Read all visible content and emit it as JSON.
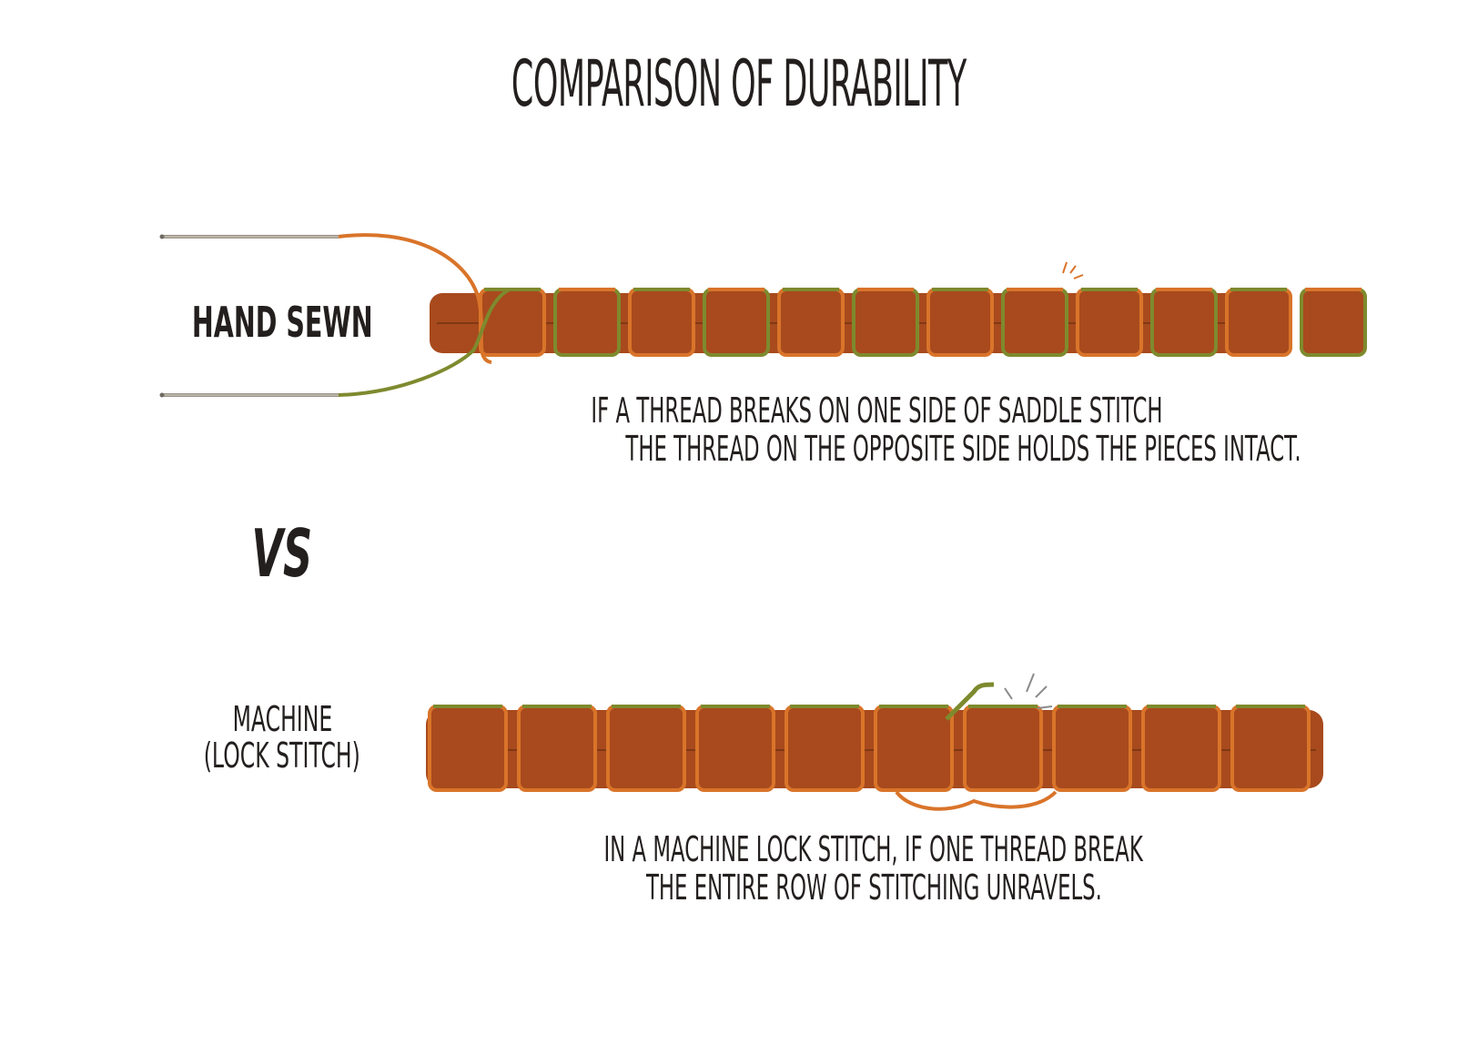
{
  "title": "COMPARISON OF DURABILITY",
  "hand_sewn": {
    "label": "HAND SEWN",
    "caption_line1": "IF A THREAD BREAKS ON ONE SIDE OF SADDLE STITCH",
    "caption_line2": "THE THREAD ON THE OPPOSITE SIDE HOLDS THE PIECES INTACT."
  },
  "versus": "VS",
  "machine": {
    "label_line1": "MACHINE",
    "label_line2": "(LOCK STITCH)",
    "caption_line1": "IN A MACHINE LOCK STITCH, IF ONE THREAD BREAK",
    "caption_line2": "THE ENTIRE ROW OF STITCHING UNRAVELS."
  },
  "colors": {
    "leather": "#a84a1d",
    "leather_dark": "#8a3a14",
    "thread_orange": "#d9742a",
    "thread_green": "#7e8a2e",
    "needle": "#9a9388",
    "text": "#231f1e"
  },
  "icons": {
    "needle_top": "needle-icon",
    "needle_bottom": "needle-icon",
    "break_mark": "thread-break-icon"
  }
}
